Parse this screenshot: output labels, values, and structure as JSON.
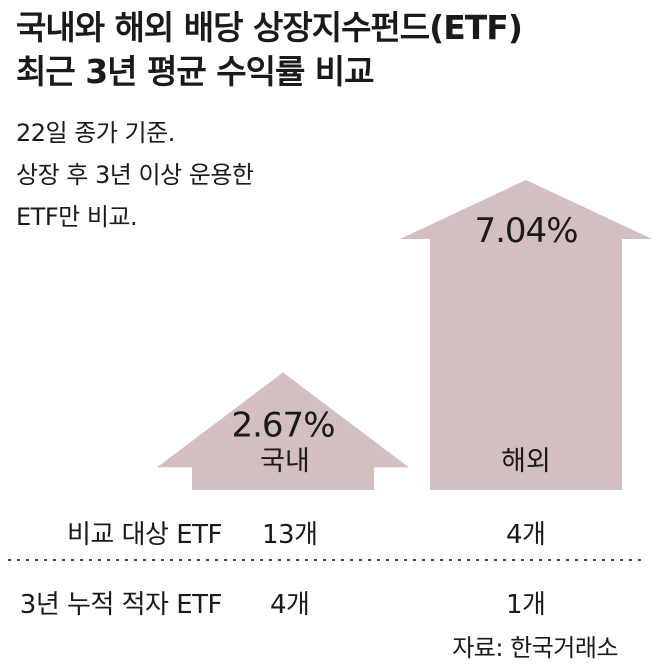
{
  "title": {
    "line1": "국내와 해외 배당 상장지수펀드(ETF)",
    "line2": "최근 3년 평균 수익률 비교"
  },
  "note": {
    "line1": "22일 종가 기준.",
    "line2": "상장 후 3년 이상 운용한",
    "line3": "ETF만 비교."
  },
  "chart_data": {
    "type": "bar",
    "categories": [
      "국내",
      "해외"
    ],
    "values": [
      2.67,
      7.04
    ],
    "value_labels": [
      "2.67%",
      "7.04%"
    ],
    "bar_style": "house-shaped bars",
    "color": "#d3bec0"
  },
  "table": {
    "rows": [
      {
        "label": "비교 대상 ETF",
        "values": [
          "13개",
          "4개"
        ]
      },
      {
        "label": "3년 누적 적자 ETF",
        "values": [
          "4개",
          "1개"
        ]
      }
    ]
  },
  "source": "자료: 한국거래소"
}
